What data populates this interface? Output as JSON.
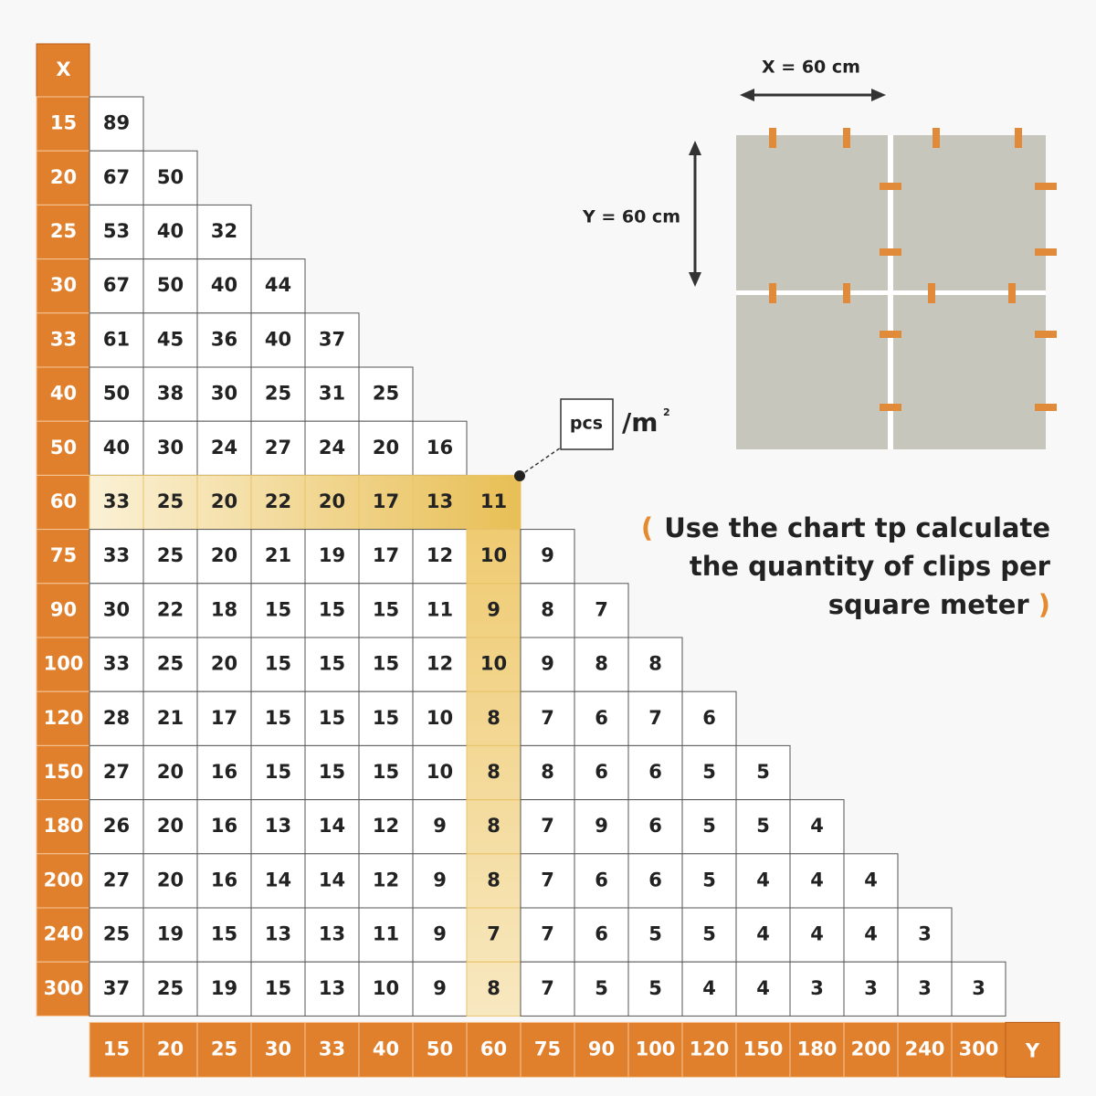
{
  "table": {
    "x_header": "X",
    "y_header": "Y",
    "rows": [
      {
        "label": "15",
        "values": [
          89
        ]
      },
      {
        "label": "20",
        "values": [
          67,
          50
        ]
      },
      {
        "label": "25",
        "values": [
          53,
          40,
          32
        ]
      },
      {
        "label": "30",
        "values": [
          67,
          50,
          40,
          44
        ]
      },
      {
        "label": "33",
        "values": [
          61,
          45,
          36,
          40,
          37
        ]
      },
      {
        "label": "40",
        "values": [
          50,
          38,
          30,
          25,
          31,
          25
        ]
      },
      {
        "label": "50",
        "values": [
          40,
          30,
          24,
          27,
          24,
          20,
          16
        ]
      },
      {
        "label": "60",
        "values": [
          33,
          25,
          20,
          22,
          20,
          17,
          13,
          11
        ]
      },
      {
        "label": "75",
        "values": [
          33,
          25,
          20,
          21,
          19,
          17,
          12,
          10,
          9
        ]
      },
      {
        "label": "90",
        "values": [
          30,
          22,
          18,
          15,
          15,
          15,
          11,
          9,
          8,
          7
        ]
      },
      {
        "label": "100",
        "values": [
          33,
          25,
          20,
          15,
          15,
          15,
          12,
          10,
          9,
          8,
          8
        ]
      },
      {
        "label": "120",
        "values": [
          28,
          21,
          17,
          15,
          15,
          15,
          10,
          8,
          7,
          6,
          7,
          6
        ]
      },
      {
        "label": "150",
        "values": [
          27,
          20,
          16,
          15,
          15,
          15,
          10,
          8,
          8,
          6,
          6,
          5,
          5
        ]
      },
      {
        "label": "180",
        "values": [
          26,
          20,
          16,
          13,
          14,
          12,
          9,
          8,
          7,
          9,
          6,
          5,
          5,
          4
        ]
      },
      {
        "label": "200",
        "values": [
          27,
          20,
          16,
          14,
          14,
          12,
          9,
          8,
          7,
          6,
          6,
          5,
          4,
          4,
          4
        ]
      },
      {
        "label": "240",
        "values": [
          25,
          19,
          15,
          13,
          13,
          11,
          9,
          7,
          7,
          6,
          5,
          5,
          4,
          4,
          4,
          3
        ]
      },
      {
        "label": "300",
        "values": [
          37,
          25,
          19,
          15,
          13,
          10,
          9,
          8,
          7,
          5,
          5,
          4,
          4,
          3,
          3,
          3,
          3
        ]
      }
    ],
    "columns": [
      "15",
      "20",
      "25",
      "30",
      "33",
      "40",
      "50",
      "60",
      "75",
      "90",
      "100",
      "120",
      "150",
      "180",
      "200",
      "240",
      "300"
    ]
  },
  "unit": {
    "box": "pcs",
    "per": "/m",
    "exponent": "2"
  },
  "diagram": {
    "x_label": "X = 60 cm",
    "y_label": "Y = 60 cm"
  },
  "note": {
    "open": "(",
    "lines": [
      "Use the chart tp calculate",
      "the quantity of clips per",
      "square meter"
    ],
    "close": ")"
  }
}
